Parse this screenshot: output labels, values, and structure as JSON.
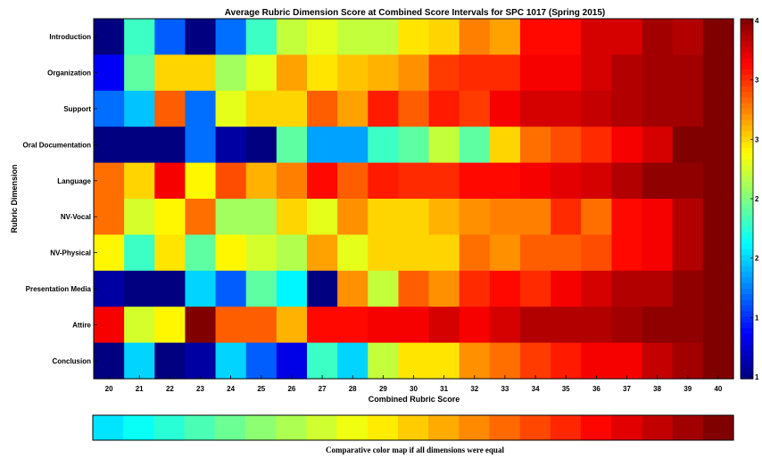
{
  "chart_data": {
    "type": "heatmap",
    "title": "Average Rubric Dimension Score at Combined Score Intervals for SPC 1017 (Spring 2015)",
    "xlabel": "Combined Rubric Score",
    "ylabel": "Rubric Dimension",
    "x": [
      "20",
      "21",
      "22",
      "23",
      "24",
      "25",
      "26",
      "27",
      "28",
      "29",
      "30",
      "31",
      "32",
      "33",
      "34",
      "35",
      "36",
      "37",
      "38",
      "39",
      "40"
    ],
    "y": [
      "Introduction",
      "Organization",
      "Support",
      "Oral Documentation",
      "Language",
      "NV-Vocal",
      "NV-Physical",
      "Presentation Media",
      "Attire",
      "Conclusion"
    ],
    "value_range": [
      1,
      4
    ],
    "colorbar_ticks": [
      "4",
      "3",
      "3",
      "2",
      "2",
      "1",
      "1"
    ],
    "values": [
      [
        1.0,
        2.3,
        1.65,
        1.0,
        1.7,
        2.3,
        2.7,
        2.8,
        2.7,
        2.7,
        2.95,
        3.0,
        3.25,
        3.15,
        3.6,
        3.6,
        3.75,
        3.75,
        3.9,
        3.85,
        4.0
      ],
      [
        1.35,
        2.4,
        3.0,
        3.0,
        2.6,
        2.8,
        3.15,
        2.95,
        3.05,
        3.1,
        3.2,
        3.45,
        3.5,
        3.5,
        3.65,
        3.65,
        3.75,
        3.85,
        3.9,
        3.9,
        4.0
      ],
      [
        1.7,
        1.95,
        3.35,
        1.7,
        2.8,
        3.0,
        3.0,
        3.35,
        3.15,
        3.55,
        3.35,
        3.55,
        3.45,
        3.65,
        3.75,
        3.75,
        3.8,
        3.85,
        3.9,
        3.9,
        4.0
      ],
      [
        1.0,
        1.0,
        1.0,
        1.7,
        1.1,
        1.0,
        2.4,
        1.85,
        1.85,
        2.3,
        2.4,
        2.7,
        2.4,
        3.0,
        3.3,
        3.4,
        3.5,
        3.65,
        3.75,
        4.0,
        4.0
      ],
      [
        3.3,
        3.0,
        3.65,
        2.9,
        3.4,
        3.1,
        3.25,
        3.6,
        3.35,
        3.55,
        3.5,
        3.5,
        3.6,
        3.6,
        3.65,
        3.7,
        3.75,
        3.85,
        3.95,
        3.95,
        4.0
      ],
      [
        3.3,
        2.75,
        2.9,
        3.3,
        2.6,
        2.6,
        3.0,
        2.8,
        3.2,
        3.0,
        3.0,
        3.1,
        3.2,
        3.25,
        3.25,
        3.5,
        3.3,
        3.6,
        3.65,
        3.85,
        4.0
      ],
      [
        2.9,
        2.3,
        2.95,
        2.4,
        2.9,
        2.75,
        2.65,
        3.15,
        2.8,
        3.0,
        3.0,
        3.0,
        3.3,
        3.2,
        3.35,
        3.35,
        3.4,
        3.6,
        3.65,
        3.85,
        4.0
      ],
      [
        1.1,
        1.0,
        1.0,
        2.0,
        1.65,
        2.4,
        2.1,
        1.0,
        3.2,
        2.7,
        3.35,
        3.2,
        3.5,
        3.6,
        3.5,
        3.65,
        3.75,
        3.85,
        3.85,
        3.95,
        4.0
      ],
      [
        3.65,
        2.75,
        2.9,
        4.0,
        3.35,
        3.35,
        3.1,
        3.6,
        3.6,
        3.65,
        3.65,
        3.75,
        3.65,
        3.75,
        3.85,
        3.85,
        3.85,
        3.9,
        3.95,
        3.95,
        4.0
      ],
      [
        1.0,
        2.0,
        1.0,
        1.1,
        2.0,
        1.65,
        1.3,
        2.3,
        2.0,
        2.7,
        2.95,
        2.95,
        3.2,
        3.3,
        3.45,
        3.55,
        3.65,
        3.65,
        3.8,
        3.9,
        4.0
      ]
    ],
    "reference_colorbar": {
      "label": "Comparative color map if all dimensions were equal",
      "steps": 21
    }
  }
}
